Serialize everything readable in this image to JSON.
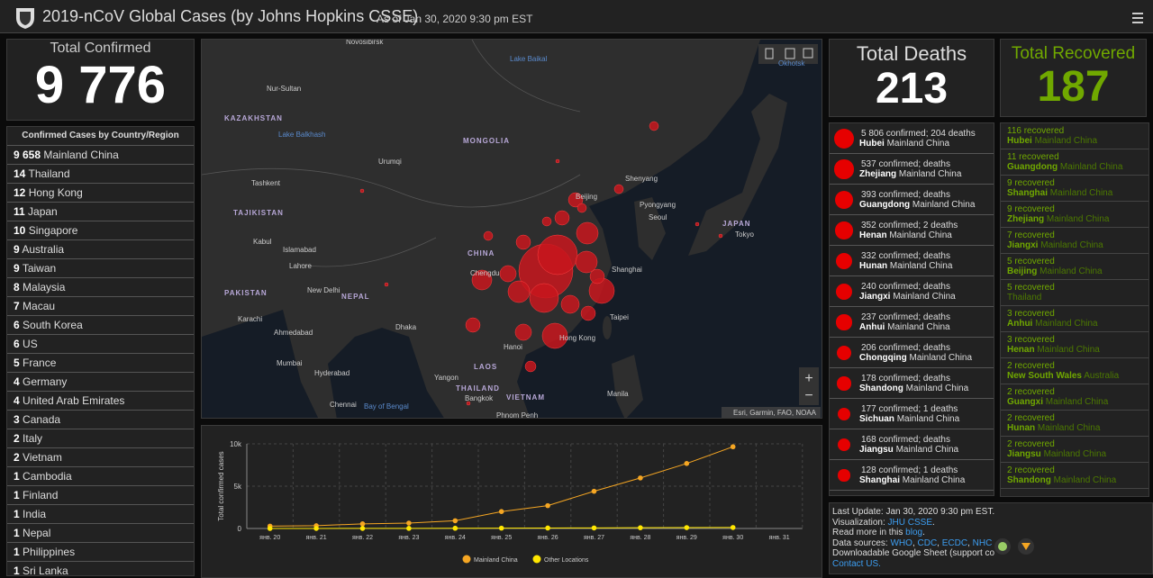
{
  "header": {
    "title": "2019-nCoV Global Cases (by Johns Hopkins CSSE)",
    "subtitle": "As of Jan 30, 2020 9:30 pm EST"
  },
  "total_confirmed": {
    "label": "Total Confirmed",
    "value": "9 776"
  },
  "countries": {
    "title": "Confirmed Cases by Country/Region",
    "rows": [
      {
        "count": "9 658",
        "name": "Mainland China"
      },
      {
        "count": "14",
        "name": "Thailand"
      },
      {
        "count": "12",
        "name": "Hong Kong"
      },
      {
        "count": "11",
        "name": "Japan"
      },
      {
        "count": "10",
        "name": "Singapore"
      },
      {
        "count": "9",
        "name": "Australia"
      },
      {
        "count": "9",
        "name": "Taiwan"
      },
      {
        "count": "8",
        "name": "Malaysia"
      },
      {
        "count": "7",
        "name": "Macau"
      },
      {
        "count": "6",
        "name": "South Korea"
      },
      {
        "count": "6",
        "name": "US"
      },
      {
        "count": "5",
        "name": "France"
      },
      {
        "count": "4",
        "name": "Germany"
      },
      {
        "count": "4",
        "name": "United Arab Emirates"
      },
      {
        "count": "3",
        "name": "Canada"
      },
      {
        "count": "2",
        "name": "Italy"
      },
      {
        "count": "2",
        "name": "Vietnam"
      },
      {
        "count": "1",
        "name": "Cambodia"
      },
      {
        "count": "1",
        "name": "Finland"
      },
      {
        "count": "1",
        "name": "India"
      },
      {
        "count": "1",
        "name": "Nepal"
      },
      {
        "count": "1",
        "name": "Philippines"
      },
      {
        "count": "1",
        "name": "Sri Lanka"
      }
    ]
  },
  "map": {
    "labels": [
      "Novosibirsk",
      "Nur-Sultan",
      "KAZAKHSTAN",
      "Lake Balkhash",
      "MONGOLIA",
      "Urumqi",
      "Tashkent",
      "TAJIKISTAN",
      "Kabul",
      "Islamabad",
      "Lahore",
      "PAKISTAN",
      "New Delhi",
      "NEPAL",
      "CHINA",
      "Chengdu",
      "Beijing",
      "Shenyang",
      "Pyongyang",
      "Seoul",
      "JAPAN",
      "Tokyo",
      "Shanghai",
      "Taipei",
      "Hong Kong",
      "Hanoi",
      "Dhaka",
      "Karachi",
      "Ahmedabad",
      "Mumbai",
      "Hyderabad",
      "Chennai",
      "Bay of Bengal",
      "Yangon",
      "THAILAND",
      "Bangkok",
      "VIETNAM",
      "LAOS",
      "Phnom Penh",
      "Manila",
      "Okhotsk",
      "Lake Baikal"
    ],
    "attribution": "Esri, Garmin, FAO, NOAA"
  },
  "total_deaths": {
    "label": "Total Deaths",
    "value": "213"
  },
  "total_recovered": {
    "label": "Total Recovered",
    "value": "187"
  },
  "deaths": [
    {
      "text": "5 806 confirmed; 204 deaths",
      "province": "Hubei",
      "region": "Mainland China"
    },
    {
      "text": "537 confirmed;  deaths",
      "province": "Zhejiang",
      "region": "Mainland China"
    },
    {
      "text": "393 confirmed;  deaths",
      "province": "Guangdong",
      "region": "Mainland China"
    },
    {
      "text": "352 confirmed; 2 deaths",
      "province": "Henan",
      "region": "Mainland China"
    },
    {
      "text": "332 confirmed;  deaths",
      "province": "Hunan",
      "region": "Mainland China"
    },
    {
      "text": "240 confirmed;  deaths",
      "province": "Jiangxi",
      "region": "Mainland China"
    },
    {
      "text": "237 confirmed;  deaths",
      "province": "Anhui",
      "region": "Mainland China"
    },
    {
      "text": "206 confirmed;  deaths",
      "province": "Chongqing",
      "region": "Mainland China"
    },
    {
      "text": "178 confirmed;  deaths",
      "province": "Shandong",
      "region": "Mainland China"
    },
    {
      "text": "177 confirmed; 1 deaths",
      "province": "Sichuan",
      "region": "Mainland China"
    },
    {
      "text": "168 confirmed;  deaths",
      "province": "Jiangsu",
      "region": "Mainland China"
    },
    {
      "text": "128 confirmed; 1 deaths",
      "province": "Shanghai",
      "region": "Mainland China"
    }
  ],
  "recovered": [
    {
      "text": "116 recovered",
      "province": "Hubei",
      "region": "Mainland China"
    },
    {
      "text": "11 recovered",
      "province": "Guangdong",
      "region": "Mainland China"
    },
    {
      "text": "9 recovered",
      "province": "Shanghai",
      "region": "Mainland China"
    },
    {
      "text": "9 recovered",
      "province": "Zhejiang",
      "region": "Mainland China"
    },
    {
      "text": "7 recovered",
      "province": "Jiangxi",
      "region": "Mainland China"
    },
    {
      "text": "5 recovered",
      "province": "Beijing",
      "region": "Mainland China"
    },
    {
      "text": "5 recovered",
      "region": "Thailand"
    },
    {
      "text": "3 recovered",
      "province": "Anhui",
      "region": "Mainland China"
    },
    {
      "text": "3 recovered",
      "province": "Henan",
      "region": "Mainland China"
    },
    {
      "text": "2 recovered",
      "province": "New South Wales",
      "region": "Australia"
    },
    {
      "text": "2 recovered",
      "province": "Guangxi",
      "region": "Mainland China"
    },
    {
      "text": "2 recovered",
      "province": "Hunan",
      "region": "Mainland China"
    },
    {
      "text": "2 recovered",
      "province": "Jiangsu",
      "region": "Mainland China"
    },
    {
      "text": "2 recovered",
      "province": "Shandong",
      "region": "Mainland China"
    }
  ],
  "footer": {
    "lines": [
      [
        {
          "t": "Last Update: Jan 30, 2020 9:30 pm EST."
        }
      ],
      [
        {
          "t": "Visualization: "
        },
        {
          "t": "JHU CSSE",
          "link": true
        },
        {
          "t": "."
        }
      ],
      [
        {
          "t": "Read more in this "
        },
        {
          "t": "blog",
          "link": true
        },
        {
          "t": "."
        }
      ],
      [
        {
          "t": "Data sources: "
        },
        {
          "t": "WHO",
          "link": true
        },
        {
          "t": ", "
        },
        {
          "t": "CDC",
          "link": true
        },
        {
          "t": ", "
        },
        {
          "t": "ECDC",
          "link": true
        },
        {
          "t": ", "
        },
        {
          "t": "NHC",
          "link": true
        }
      ],
      [
        {
          "t": "Downloadable Google Sheet (support co"
        }
      ],
      [
        {
          "t": "Contact US.",
          "link": true
        }
      ]
    ]
  },
  "chart_data": {
    "type": "line",
    "y_label": "Total confirmed cases",
    "categories": [
      "янв. 20",
      "янв. 21",
      "янв. 22",
      "янв. 23",
      "янв. 24",
      "янв. 25",
      "янв. 26",
      "янв. 27",
      "янв. 28",
      "янв. 29",
      "янв. 30",
      "янв. 31"
    ],
    "series": [
      {
        "name": "Mainland China",
        "color": "#f5a623",
        "values": [
          278,
          326,
          547,
          639,
          916,
          2000,
          2700,
          4400,
          5970,
          7678,
          9658,
          null
        ]
      },
      {
        "name": "Other Locations",
        "color": "#ffe600",
        "values": [
          4,
          6,
          8,
          16,
          29,
          41,
          57,
          64,
          87,
          105,
          118,
          null
        ]
      }
    ],
    "ylim": [
      0,
      10000
    ],
    "yticks": [
      0,
      {
        "value": 5000,
        "label": "5k"
      },
      {
        "value": 10000,
        "label": "10k"
      }
    ],
    "grid": true,
    "legend": "bottom"
  }
}
